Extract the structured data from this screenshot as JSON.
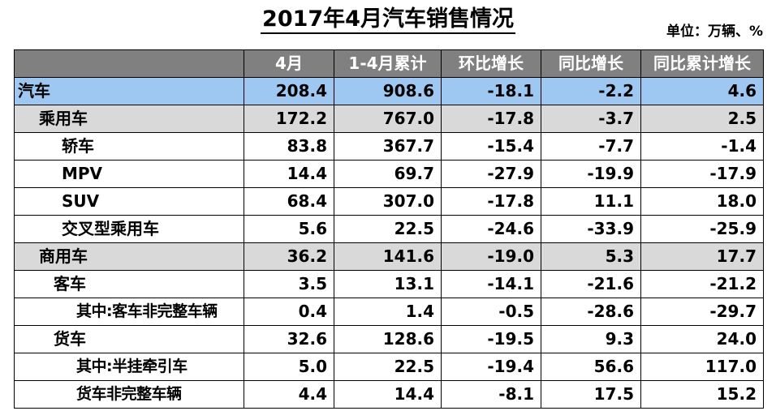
{
  "title": "2017年4月汽车销售情况",
  "unit": "单位：万辆、%",
  "colors": {
    "header_bg": "#808080",
    "highlight_row": "#9ec8f2",
    "section_row": "#d9d9d9"
  },
  "table": {
    "headers": [
      "",
      "4月",
      "1-4月累计",
      "环比增长",
      "同比增长",
      "同比累计增长"
    ],
    "rows": [
      {
        "label": "汽车",
        "values": [
          "208.4",
          "908.6",
          "-18.1",
          "-2.2",
          "4.6"
        ]
      },
      {
        "label": "乘用车",
        "values": [
          "172.2",
          "767.0",
          "-17.8",
          "-3.7",
          "2.5"
        ]
      },
      {
        "label": "轿车",
        "values": [
          "83.8",
          "367.7",
          "-15.4",
          "-7.7",
          "-1.4"
        ]
      },
      {
        "label": "MPV",
        "values": [
          "14.4",
          "69.7",
          "-27.9",
          "-19.9",
          "-17.9"
        ]
      },
      {
        "label": "SUV",
        "values": [
          "68.4",
          "307.0",
          "-17.8",
          "11.1",
          "18.0"
        ]
      },
      {
        "label": "交叉型乘用车",
        "values": [
          "5.6",
          "22.5",
          "-24.6",
          "-33.9",
          "-25.9"
        ]
      },
      {
        "label": "商用车",
        "values": [
          "36.2",
          "141.6",
          "-19.0",
          "5.3",
          "17.7"
        ]
      },
      {
        "label": "客车",
        "values": [
          "3.5",
          "13.1",
          "-14.1",
          "-21.6",
          "-21.2"
        ]
      },
      {
        "label": "其中:客车非完整车辆",
        "values": [
          "0.4",
          "1.4",
          "-0.5",
          "-28.6",
          "-29.7"
        ]
      },
      {
        "label": "货车",
        "values": [
          "32.6",
          "128.6",
          "-19.5",
          "9.3",
          "24.0"
        ]
      },
      {
        "label": "其中:半挂牵引车",
        "values": [
          "5.0",
          "22.5",
          "-19.4",
          "56.6",
          "117.0"
        ]
      },
      {
        "label": "货车非完整车辆",
        "values": [
          "4.4",
          "14.4",
          "-8.1",
          "17.5",
          "15.2"
        ]
      }
    ]
  }
}
